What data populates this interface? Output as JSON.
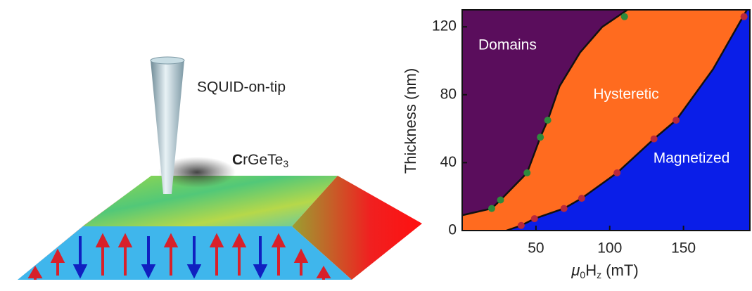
{
  "illustration": {
    "tip_label": "SQUID-on-tip",
    "material": [
      "C",
      "rGeTe",
      "3"
    ]
  },
  "chart_data": {
    "type": "phase",
    "y_label": "Thickness (nm)",
    "x_label": [
      "μ",
      "0",
      "H",
      "z",
      " (mT)"
    ],
    "xlim": [
      0,
      195
    ],
    "ylim": [
      0,
      130
    ],
    "xticks": [
      50,
      100,
      150
    ],
    "yticks": [
      0,
      40,
      80,
      120
    ],
    "regions": {
      "colors": [
        "#5a0d5c",
        "#ff6b1f",
        "#0a1ee8"
      ],
      "labels": [
        "Domains",
        "Hysteretic",
        "Magnetized"
      ]
    },
    "series": [
      {
        "type": "line",
        "color": "#111111",
        "x": [
          0,
          20,
          26,
          44,
          53,
          58,
          66,
          80,
          95,
          112
        ],
        "values": [
          9,
          13,
          18,
          34,
          55,
          65,
          85,
          105,
          120,
          130
        ]
      },
      {
        "type": "line",
        "color": "#111111",
        "x": [
          30,
          40,
          49,
          69,
          81,
          105,
          130,
          145,
          170,
          193
        ],
        "values": [
          0,
          3,
          7,
          13,
          19,
          34,
          54,
          65,
          95,
          130
        ]
      },
      {
        "type": "scatter",
        "color": "#2f8a3c",
        "x": [
          20,
          26,
          44,
          53,
          58,
          110
        ],
        "values": [
          13,
          18,
          34,
          55,
          65,
          126
        ]
      },
      {
        "type": "scatter",
        "color": "#b8283c",
        "x": [
          40,
          49,
          69,
          81,
          105,
          130,
          145,
          191
        ],
        "values": [
          3,
          7,
          13,
          19,
          34,
          54,
          65,
          126
        ]
      }
    ]
  }
}
